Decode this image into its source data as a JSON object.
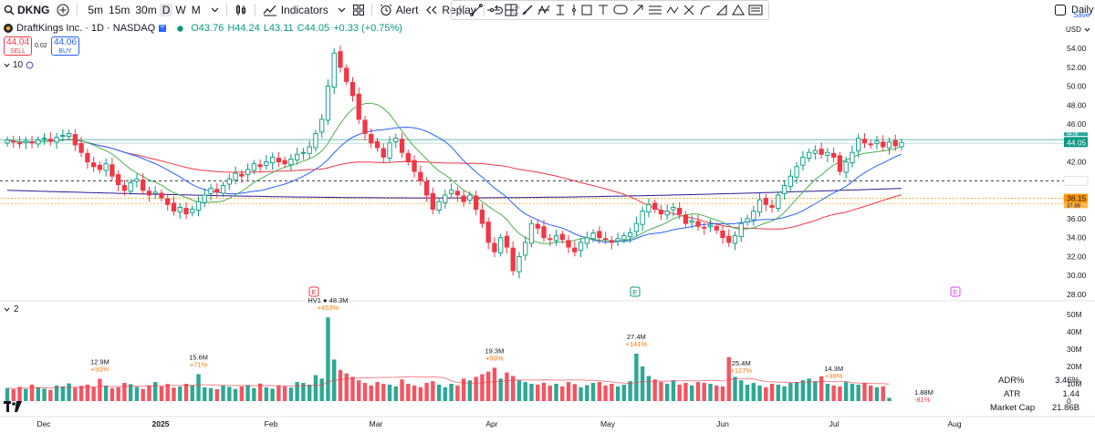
{
  "toolbar": {
    "symbol": "DKNG",
    "timeframes": [
      "5m",
      "15m",
      "30m",
      "D",
      "W",
      "M"
    ],
    "active_timeframe": "D",
    "indicators_label": "Indicators",
    "alert_label": "Alert",
    "replay_label": "Replay",
    "daily_label": "Daily C",
    "save_label": "Save"
  },
  "legend": {
    "title": "DraftKings Inc. · 1D · NASDAQ",
    "o": "O43.76",
    "h": "H44.24",
    "l": "L43.11",
    "c": "C44.05",
    "chg": "+0.33 (+0.75%)",
    "sell_price": "44.04",
    "sell_label": "SELL",
    "spread": "0.02",
    "buy_price": "44.06",
    "buy_label": "BUY",
    "ma_period": "10",
    "vol_pane_num": "2"
  },
  "currency": "USD",
  "colors": {
    "up": "#089981",
    "down": "#f23645",
    "ma_green": "#4caf50",
    "ma_blue": "#2962ff",
    "ma_red": "#f23645",
    "ma_purple": "#311b92",
    "volume_ma": "#f23645"
  },
  "chart_data": [
    {
      "type": "candlestick",
      "ylim": [
        27.5,
        55.5
      ],
      "y_ticks": [
        "54.00",
        "52.00",
        "50.00",
        "48.00",
        "46.00",
        "44.00",
        "42.00",
        "40.00",
        "38.00",
        "36.00",
        "34.00",
        "32.00",
        "30.00",
        "28.00"
      ],
      "x_ticks": [
        "Dec",
        "2025",
        "Feb",
        "Mar",
        "Apr",
        "May",
        "Jun",
        "Jul",
        "Aug"
      ],
      "last_price": "44.05",
      "price_labels": [
        "38.15",
        "37.88",
        "44.08"
      ],
      "reference_lines": [
        44.35,
        40.0,
        38.15,
        37.6
      ],
      "earnings_markers": [
        "E",
        "E",
        "E"
      ],
      "closes": [
        44.3,
        44.1,
        43.9,
        44.2,
        44.0,
        44.3,
        44.5,
        44.2,
        44.6,
        44.8,
        45.0,
        43.8,
        43.0,
        42.0,
        41.5,
        41.2,
        41.8,
        40.5,
        39.6,
        39.0,
        39.8,
        40.2,
        39.0,
        38.5,
        38.8,
        38.2,
        37.5,
        36.8,
        37.2,
        36.5,
        37.0,
        37.8,
        38.5,
        39.2,
        38.8,
        39.5,
        40.2,
        40.8,
        40.5,
        41.2,
        41.8,
        41.5,
        42.0,
        42.5,
        42.0,
        41.8,
        42.3,
        42.8,
        43.0,
        43.6,
        45.0,
        46.5,
        50.0,
        53.5,
        52.0,
        50.5,
        49.0,
        46.5,
        45.0,
        44.0,
        43.5,
        42.5,
        44.0,
        44.5,
        43.0,
        42.0,
        41.0,
        40.0,
        38.5,
        37.0,
        37.8,
        38.5,
        39.0,
        38.5,
        37.8,
        38.5,
        37.0,
        35.5,
        33.5,
        32.5,
        34.0,
        33.0,
        30.5,
        32.0,
        33.5,
        35.5,
        35.0,
        34.0,
        33.8,
        34.2,
        33.8,
        33.0,
        32.5,
        33.5,
        34.0,
        34.5,
        34.0,
        33.8,
        33.5,
        33.9,
        34.2,
        34.5,
        35.5,
        36.8,
        37.5,
        37.0,
        36.5,
        36.8,
        37.2,
        36.5,
        35.5,
        35.8,
        35.2,
        35.0,
        35.3,
        34.8,
        34.0,
        33.5,
        34.2,
        35.5,
        36.0,
        36.8,
        38.0,
        37.5,
        37.2,
        38.5,
        39.5,
        40.5,
        41.5,
        42.5,
        43.0,
        43.2,
        42.8,
        43.0,
        42.5,
        41.0,
        42.0,
        43.0,
        44.5,
        44.0,
        43.8,
        44.2,
        43.6,
        44.1,
        43.7,
        44.05
      ],
      "volumes_m": [
        7.5,
        6.8,
        8.2,
        7.0,
        9.5,
        8.0,
        7.2,
        6.5,
        9.0,
        8.5,
        10.2,
        7.8,
        8.8,
        9.5,
        8.1,
        12.9,
        9.0,
        7.5,
        8.0,
        10.5,
        9.8,
        8.2,
        7.0,
        9.1,
        11.0,
        8.5,
        9.9,
        7.8,
        8.4,
        10.0,
        9.2,
        15.6,
        8.0,
        7.5,
        6.9,
        9.0,
        8.2,
        7.0,
        8.5,
        9.3,
        7.5,
        10.1,
        8.0,
        7.2,
        9.0,
        8.5,
        7.8,
        11.0,
        10.5,
        9.5,
        15.0,
        13.0,
        48.3,
        24.0,
        18.0,
        16.0,
        14.0,
        12.0,
        10.5,
        9.0,
        11.0,
        10.0,
        9.5,
        8.5,
        12.5,
        10.0,
        9.0,
        8.0,
        10.5,
        11.5,
        9.5,
        8.0,
        10.0,
        9.0,
        13.0,
        12.0,
        14.0,
        15.5,
        17.0,
        19.3,
        13.0,
        16.5,
        14.5,
        12.0,
        11.0,
        10.0,
        9.5,
        10.5,
        9.0,
        10.0,
        8.5,
        11.0,
        9.8,
        8.0,
        9.2,
        10.5,
        11.0,
        9.0,
        10.0,
        8.5,
        9.5,
        11.5,
        27.4,
        20.0,
        14.5,
        12.5,
        11.0,
        10.0,
        12.0,
        9.5,
        10.5,
        9.0,
        11.0,
        10.5,
        10.0,
        9.0,
        8.5,
        25.4,
        14.0,
        12.0,
        9.5,
        10.5,
        9.0,
        8.0,
        10.0,
        9.5,
        8.5,
        10.5,
        11.0,
        12.0,
        13.0,
        11.5,
        14.3,
        10.0,
        9.0,
        8.5,
        11.0,
        10.0,
        9.5,
        10.5,
        9.0,
        8.0,
        8.5,
        1.88
      ],
      "volume_y_ticks": [
        "50M",
        "40M",
        "30M",
        "20M",
        "10M",
        "0"
      ],
      "volume_annotations": [
        {
          "value": "12.9M",
          "change": "+50%"
        },
        {
          "value": "15.6M",
          "change": "+71%"
        },
        {
          "value": "HV1 ● 48.3M",
          "change": "+453%"
        },
        {
          "value": "19.3M",
          "change": "+59%"
        },
        {
          "value": "27.4M",
          "change": "+141%"
        },
        {
          "value": "25.4M",
          "change": "+127%"
        },
        {
          "value": "14.3M",
          "change": "+39%"
        }
      ],
      "last_volume": {
        "value": "1.88M",
        "change": "-81%"
      }
    }
  ],
  "stats": [
    {
      "label": "ADR%",
      "value": "3.46%"
    },
    {
      "label": "ATR",
      "value": "1.44"
    },
    {
      "label": "Market Cap",
      "value": "21.86B"
    }
  ]
}
